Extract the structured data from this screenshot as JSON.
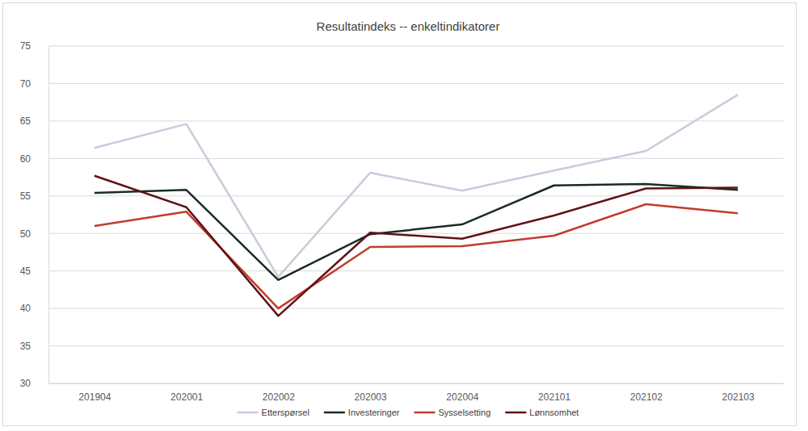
{
  "chart_data": {
    "type": "line",
    "title": "Resultatindeks -- enkeltindikatorer",
    "categories": [
      "201904",
      "202001",
      "202002",
      "202003",
      "202004",
      "202101",
      "202102",
      "202103"
    ],
    "series": [
      {
        "name": "Etterspørsel",
        "color": "#cbcadb",
        "values": [
          61.4,
          64.6,
          44.2,
          58.1,
          55.7,
          58.4,
          61.0,
          68.5
        ]
      },
      {
        "name": "Investeringer",
        "color": "#1a2b25",
        "values": [
          55.4,
          55.8,
          43.8,
          49.9,
          51.2,
          56.4,
          56.6,
          55.8
        ]
      },
      {
        "name": "Sysselsetting",
        "color": "#c33b2c",
        "values": [
          51.0,
          52.9,
          40.0,
          48.2,
          48.3,
          49.7,
          53.9,
          52.7
        ]
      },
      {
        "name": "Lønnsomhet",
        "color": "#5e1219",
        "values": [
          57.7,
          53.5,
          39.0,
          50.1,
          49.3,
          52.4,
          56.0,
          56.1
        ]
      }
    ],
    "ylim": [
      30,
      75
    ],
    "yticks": [
      30,
      35,
      40,
      45,
      50,
      55,
      60,
      65,
      70,
      75
    ],
    "grid": true,
    "legend": "bottom"
  }
}
